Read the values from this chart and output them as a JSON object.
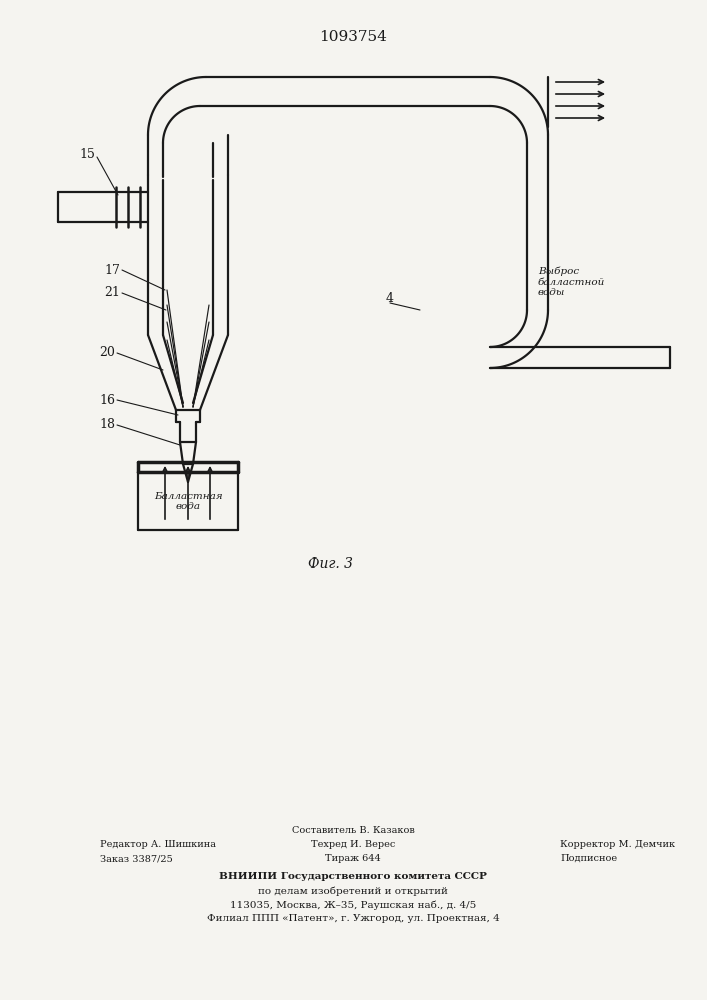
{
  "title": "1093754",
  "fig_label": "Фиг. 3",
  "bg_color": "#f5f4f0",
  "lc": "#1a1a1a",
  "label_15": "15",
  "label_17": "17",
  "label_21": "21",
  "label_20": "20",
  "label_16": "16",
  "label_18": "18",
  "label_4": "4",
  "label_vybros": "Выброс\nбалластной\nводы",
  "label_ballast": "Балластная\nвода",
  "footer_editor": "Редактор А. Шишкина",
  "footer_order": "Заказ 3387/25",
  "footer_compiler": "Составитель В. Казаков",
  "footer_techred": "Техред И. Верес",
  "footer_tirazh": "Тираж 644",
  "footer_correktor": "Корректор М. Демчик",
  "footer_podp": "Подписное",
  "footer_vniip1": "ВНИИПИ Государственного комитета СССР",
  "footer_vniip2": "по делам изобретений и открытий",
  "footer_addr": "113035, Москва, Ж–35, Раушская наб., д. 4/5",
  "footer_filial": "Филиал ППП «Патент», г. Ужгород, ул. Проектная, 4"
}
